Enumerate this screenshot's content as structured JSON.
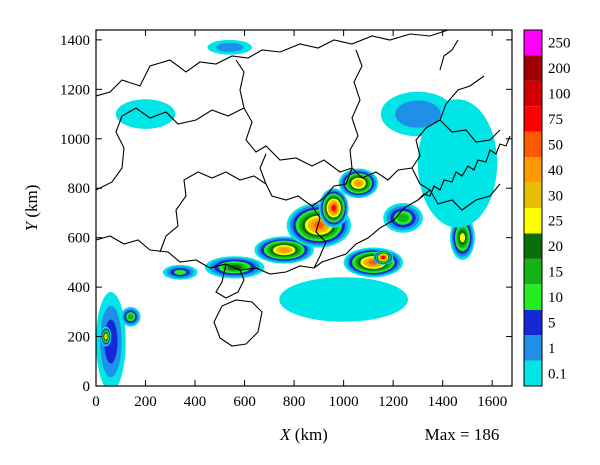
{
  "chart_data": {
    "type": "heatmap",
    "title": "",
    "xlabel_var": "X",
    "xlabel_unit": " (km)",
    "ylabel_var": "Y",
    "ylabel_unit": " (km)",
    "xlim": [
      0,
      1680
    ],
    "ylim": [
      0,
      1440
    ],
    "x_ticks": [
      0,
      200,
      400,
      600,
      800,
      1000,
      1200,
      1400,
      1600
    ],
    "y_ticks": [
      0,
      200,
      400,
      600,
      800,
      1000,
      1200,
      1400
    ],
    "max_annotation": "Max = 186",
    "colorbar": {
      "levels": [
        "0.1",
        "1",
        "5",
        "10",
        "15",
        "20",
        "25",
        "30",
        "40",
        "50",
        "75",
        "100",
        "200",
        "250"
      ],
      "colors": [
        "#00e5e5",
        "#1e90e8",
        "#1428d8",
        "#22ee22",
        "#14b414",
        "#0a6e0a",
        "#ffff00",
        "#e6c000",
        "#ff9900",
        "#ff5a00",
        "#ff0000",
        "#d20000",
        "#a00000",
        "#ff00ff"
      ]
    },
    "rain_cells": [
      {
        "x": 60,
        "y": 180,
        "rx": 60,
        "ry": 200,
        "level": 2
      },
      {
        "x": 40,
        "y": 200,
        "rx": 22,
        "ry": 40,
        "level": 7
      },
      {
        "x": 140,
        "y": 280,
        "rx": 40,
        "ry": 40,
        "level": 4
      },
      {
        "x": 340,
        "y": 460,
        "rx": 70,
        "ry": 30,
        "level": 3
      },
      {
        "x": 560,
        "y": 480,
        "rx": 120,
        "ry": 45,
        "level": 5
      },
      {
        "x": 760,
        "y": 550,
        "rx": 120,
        "ry": 55,
        "level": 8
      },
      {
        "x": 900,
        "y": 650,
        "rx": 130,
        "ry": 90,
        "level": 9
      },
      {
        "x": 960,
        "y": 720,
        "rx": 60,
        "ry": 80,
        "level": 10
      },
      {
        "x": 1060,
        "y": 820,
        "rx": 80,
        "ry": 60,
        "level": 8
      },
      {
        "x": 1120,
        "y": 500,
        "rx": 120,
        "ry": 60,
        "level": 9
      },
      {
        "x": 1160,
        "y": 520,
        "rx": 40,
        "ry": 30,
        "level": 11
      },
      {
        "x": 1240,
        "y": 680,
        "rx": 80,
        "ry": 60,
        "level": 4
      },
      {
        "x": 1480,
        "y": 600,
        "rx": 50,
        "ry": 90,
        "level": 6
      },
      {
        "x": 1460,
        "y": 900,
        "rx": 160,
        "ry": 260,
        "level": 0
      },
      {
        "x": 1300,
        "y": 1100,
        "rx": 150,
        "ry": 90,
        "level": 1
      },
      {
        "x": 1000,
        "y": 350,
        "rx": 260,
        "ry": 90,
        "level": 0
      },
      {
        "x": 200,
        "y": 1100,
        "rx": 120,
        "ry": 60,
        "level": 0
      },
      {
        "x": 540,
        "y": 1370,
        "rx": 90,
        "ry": 30,
        "level": 1
      }
    ]
  }
}
